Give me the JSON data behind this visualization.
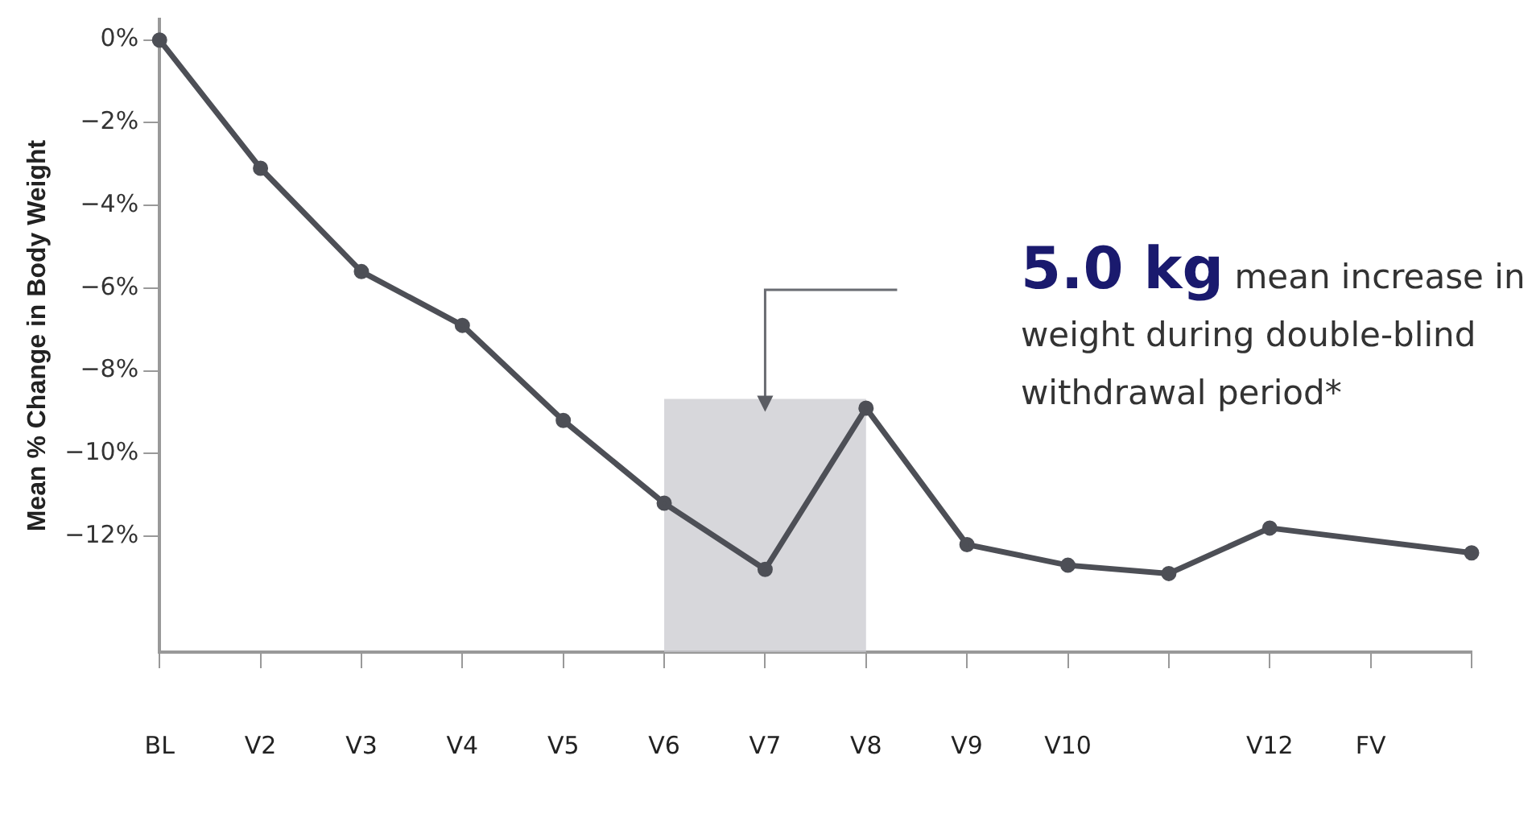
{
  "chart_data": {
    "type": "line",
    "ylabel": "Mean % Change in Body Weight",
    "categories": [
      "BL",
      "V2",
      "V3",
      "V4",
      "V5",
      "V6",
      "V7",
      "V8",
      "V9",
      "V10",
      null,
      "V12",
      "FV",
      null
    ],
    "series": [
      {
        "color": "#4d4f56",
        "values": [
          0,
          -3.1,
          -5.6,
          -6.9,
          -9.2,
          -11.2,
          -12.8,
          -8.9,
          -12.2,
          -12.7,
          -12.9,
          -11.8,
          null,
          -12.4
        ]
      }
    ],
    "ylim": [
      -14.8,
      0.5
    ],
    "yticks": [
      {
        "value": 0,
        "label": "0%"
      },
      {
        "value": -2,
        "label": "−2%"
      },
      {
        "value": -4,
        "label": "−4%"
      },
      {
        "value": -6,
        "label": "−6%"
      },
      {
        "value": -8,
        "label": "−8%"
      },
      {
        "value": -10,
        "label": "−10%"
      },
      {
        "value": -12,
        "label": "−12%"
      }
    ],
    "bands": [
      {
        "axis": "x",
        "from": "V6",
        "to": "V8",
        "color": "#c9cacf"
      }
    ],
    "annotations": [
      "5.0 kg mean increase in weight during double-blind withdrawal period*"
    ],
    "marker": "circle",
    "line_style": "solid",
    "grid": false,
    "legend": false
  }
}
